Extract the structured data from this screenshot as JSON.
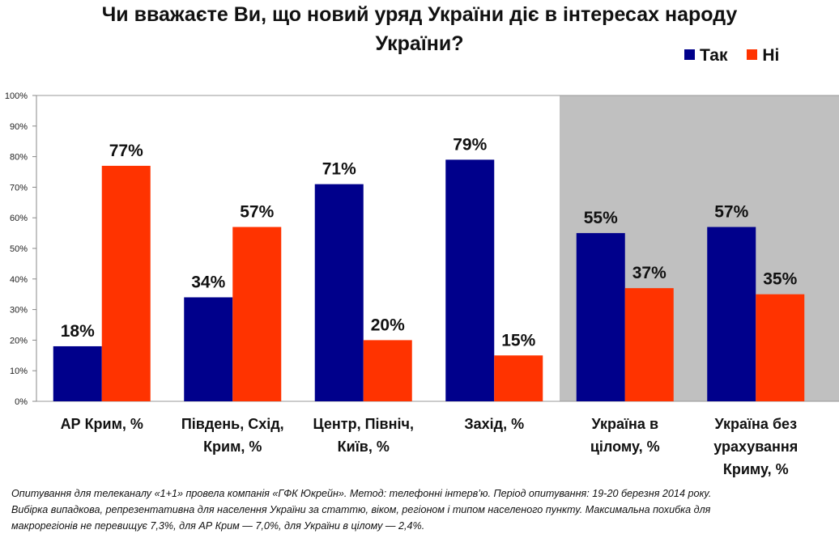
{
  "chart_data": {
    "type": "bar",
    "title_line1": "Чи вважаєте Ви, що новий уряд України діє в інтересах народу",
    "title_line2": "України?",
    "categories": [
      [
        "АР Крим, %"
      ],
      [
        "Південь, Схід,",
        "Крим, %"
      ],
      [
        "Центр, Північ,",
        "Київ, %"
      ],
      [
        "Захід, %"
      ],
      [
        "Україна в",
        "цілому, %"
      ],
      [
        "Україна без",
        "урахування",
        "Криму, %"
      ]
    ],
    "series": [
      {
        "name": "Так",
        "color": "#00008b",
        "values": [
          18,
          34,
          71,
          79,
          55,
          57
        ],
        "labels": [
          "18%",
          "34%",
          "71%",
          "79%",
          "55%",
          "57%"
        ]
      },
      {
        "name": "Ні",
        "color": "#ff3300",
        "values": [
          77,
          57,
          20,
          15,
          37,
          35
        ],
        "labels": [
          "77%",
          "57%",
          "20%",
          "15%",
          "37%",
          "35%"
        ]
      }
    ],
    "yticks": [
      "0%",
      "10%",
      "20%",
      "30%",
      "40%",
      "50%",
      "60%",
      "70%",
      "80%",
      "90%",
      "100%"
    ],
    "ylim": [
      0,
      100
    ],
    "highlighted_categories": [
      4,
      5
    ],
    "highlight_color": "#c0c0c0",
    "legend_position": "top-right"
  },
  "footnote": {
    "line1": "Опитування для телеканалу «1+1» провела компанія «ГФК Юкрейн». Метод: телефонні інтерв’ю. Період опитування: 19-20 березня 2014  року.",
    "line2": "Вибірка випадкова, репрезентативна для населення України за статтю, віком, регіоном і типом населеного пункту. Максимальна похибка для",
    "line3": "макрорегіонів не перевищує 7,3%, для АР Крим — 7,0%, для України в цілому — 2,4%."
  }
}
